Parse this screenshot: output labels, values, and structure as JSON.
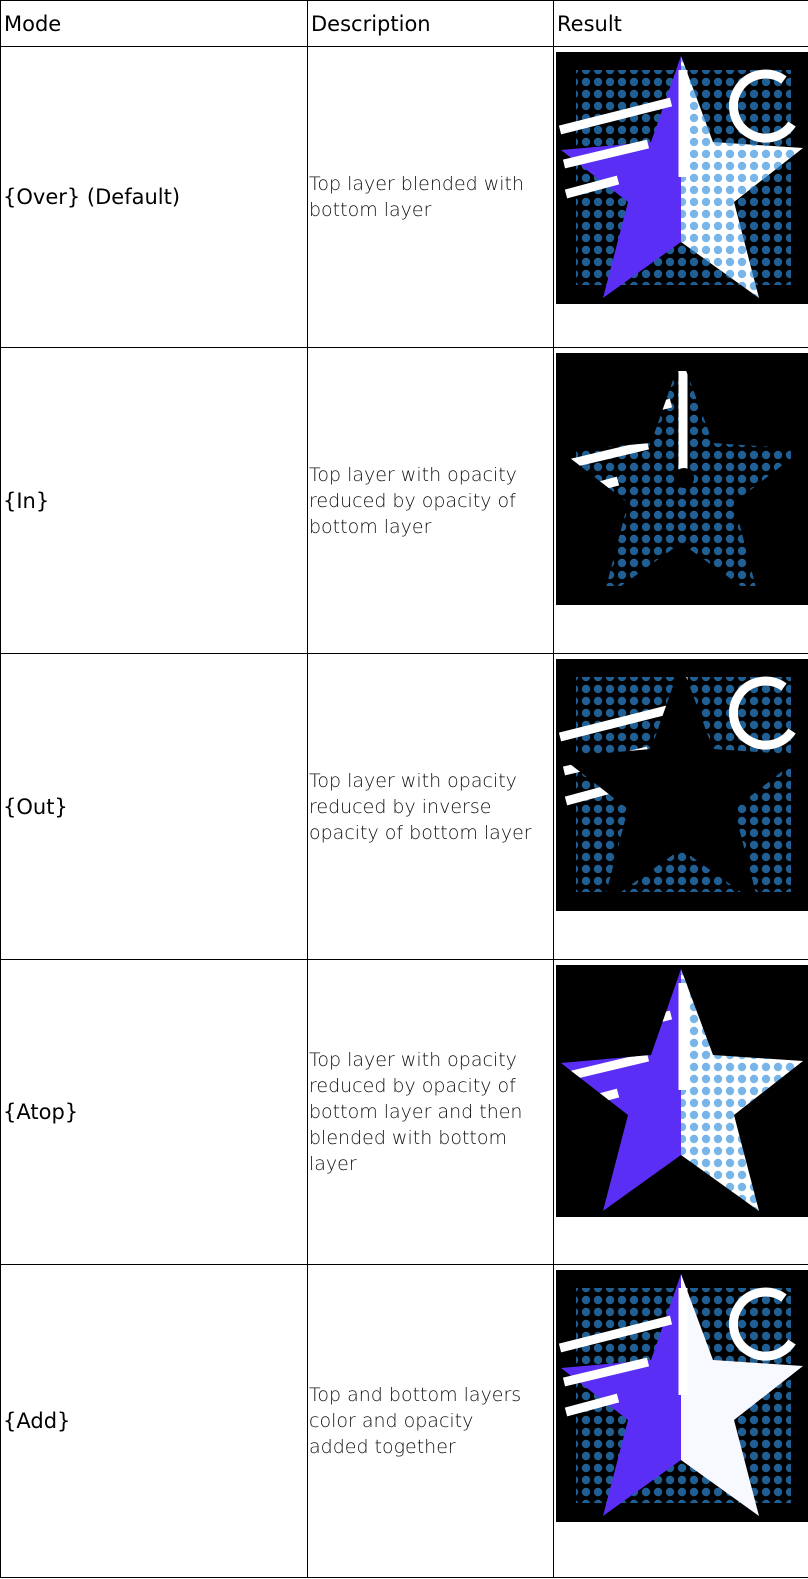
{
  "table": {
    "header": [
      "Mode",
      "Description",
      "Result"
    ],
    "rows": [
      {
        "mode": "{Over} (Default)",
        "description": "Top layer blended with bottom layer"
      },
      {
        "mode": "{In}",
        "description": "Top layer with opacity reduced by opacity of bottom layer"
      },
      {
        "mode": "{Out}",
        "description": "Top layer with opacity reduced by inverse opacity of bottom layer"
      },
      {
        "mode": "{Atop}",
        "description": "Top layer with opacity reduced by opacity of bottom layer and then blended with bottom layer"
      },
      {
        "mode": "{Add}",
        "description": "Top and bottom layers color and opacity added together"
      }
    ]
  }
}
